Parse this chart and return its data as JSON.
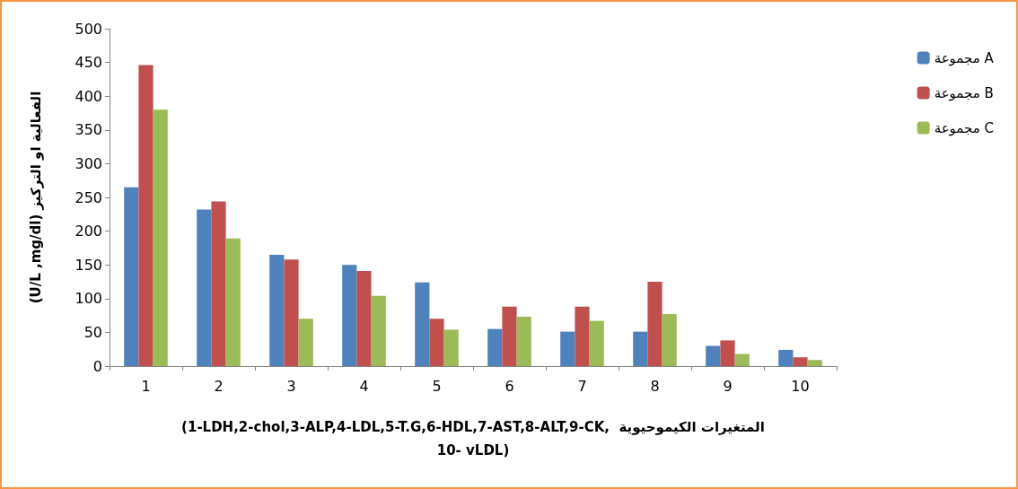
{
  "chart_data": {
    "type": "bar",
    "ylabel": "(U/L ,mg/dl) الفعالية او التركيز",
    "xlabel": "(1-LDH,2-chol,3-ALP,4-LDL,5-T.G,6-HDL,7-AST,8-ALT,9-CK,  المتغيرات الكيموحيوية\n10- vLDL)",
    "categories": [
      "1",
      "2",
      "3",
      "4",
      "5",
      "6",
      "7",
      "8",
      "9",
      "10"
    ],
    "series": [
      {
        "name": "مجموعة A",
        "color": "#4f81bd",
        "values": [
          265,
          232,
          165,
          150,
          124,
          55,
          51,
          51,
          30,
          24
        ]
      },
      {
        "name": "مجموعة B",
        "color": "#c0504d",
        "values": [
          446,
          244,
          158,
          141,
          70,
          88,
          88,
          125,
          38,
          13
        ]
      },
      {
        "name": "مجموعة C",
        "color": "#9bbb59",
        "values": [
          380,
          189,
          70,
          104,
          54,
          73,
          67,
          77,
          18,
          9
        ]
      }
    ],
    "ylim": [
      0,
      500
    ],
    "yticks": [
      0,
      50,
      100,
      150,
      200,
      250,
      300,
      350,
      400,
      450,
      500
    ],
    "grid": false,
    "legend": "top right"
  }
}
